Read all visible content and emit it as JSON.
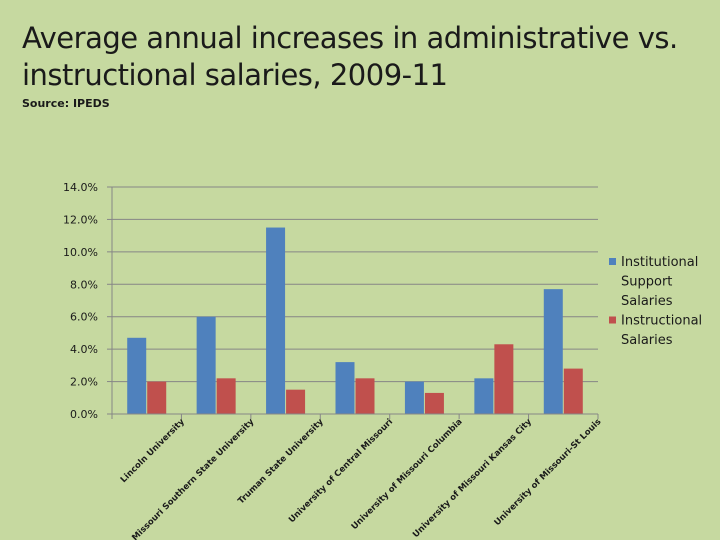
{
  "header": {
    "title": "Average annual increases in administrative vs. instructional salaries, 2009-11",
    "source": "Source: IPEDS"
  },
  "colors": {
    "series1": "#4f81bd",
    "series2": "#c0504d",
    "grid": "#868686",
    "axis": "#868686"
  },
  "chart_data": {
    "type": "bar",
    "title": "Average annual increases in administrative vs. instructional salaries, 2009-11",
    "xlabel": "",
    "ylabel": "",
    "ylim": [
      0,
      14
    ],
    "yticks": [
      0,
      2,
      4,
      6,
      8,
      10,
      12,
      14
    ],
    "ytick_labels": [
      "0.0%",
      "2.0%",
      "4.0%",
      "6.0%",
      "8.0%",
      "10.0%",
      "12.0%",
      "14.0%"
    ],
    "grid": true,
    "legend": "right",
    "categories": [
      "Lincoln University",
      "Missouri Southern State University",
      "Truman State University",
      "University of Central Missouri",
      "University of Missouri Columbia",
      "University of Missouri Kansas City",
      "University of Missouri-St Louis"
    ],
    "series": [
      {
        "name": "Institutional Support Salaries",
        "legend_lines": [
          "Institutional",
          "Support",
          "Salaries"
        ],
        "values": [
          4.7,
          6.0,
          11.5,
          3.2,
          2.0,
          2.2,
          7.7
        ]
      },
      {
        "name": "Instructional Salaries",
        "legend_lines": [
          "Instructional",
          "Salaries"
        ],
        "values": [
          2.0,
          2.2,
          1.5,
          2.2,
          1.3,
          4.3,
          2.8
        ]
      }
    ]
  }
}
